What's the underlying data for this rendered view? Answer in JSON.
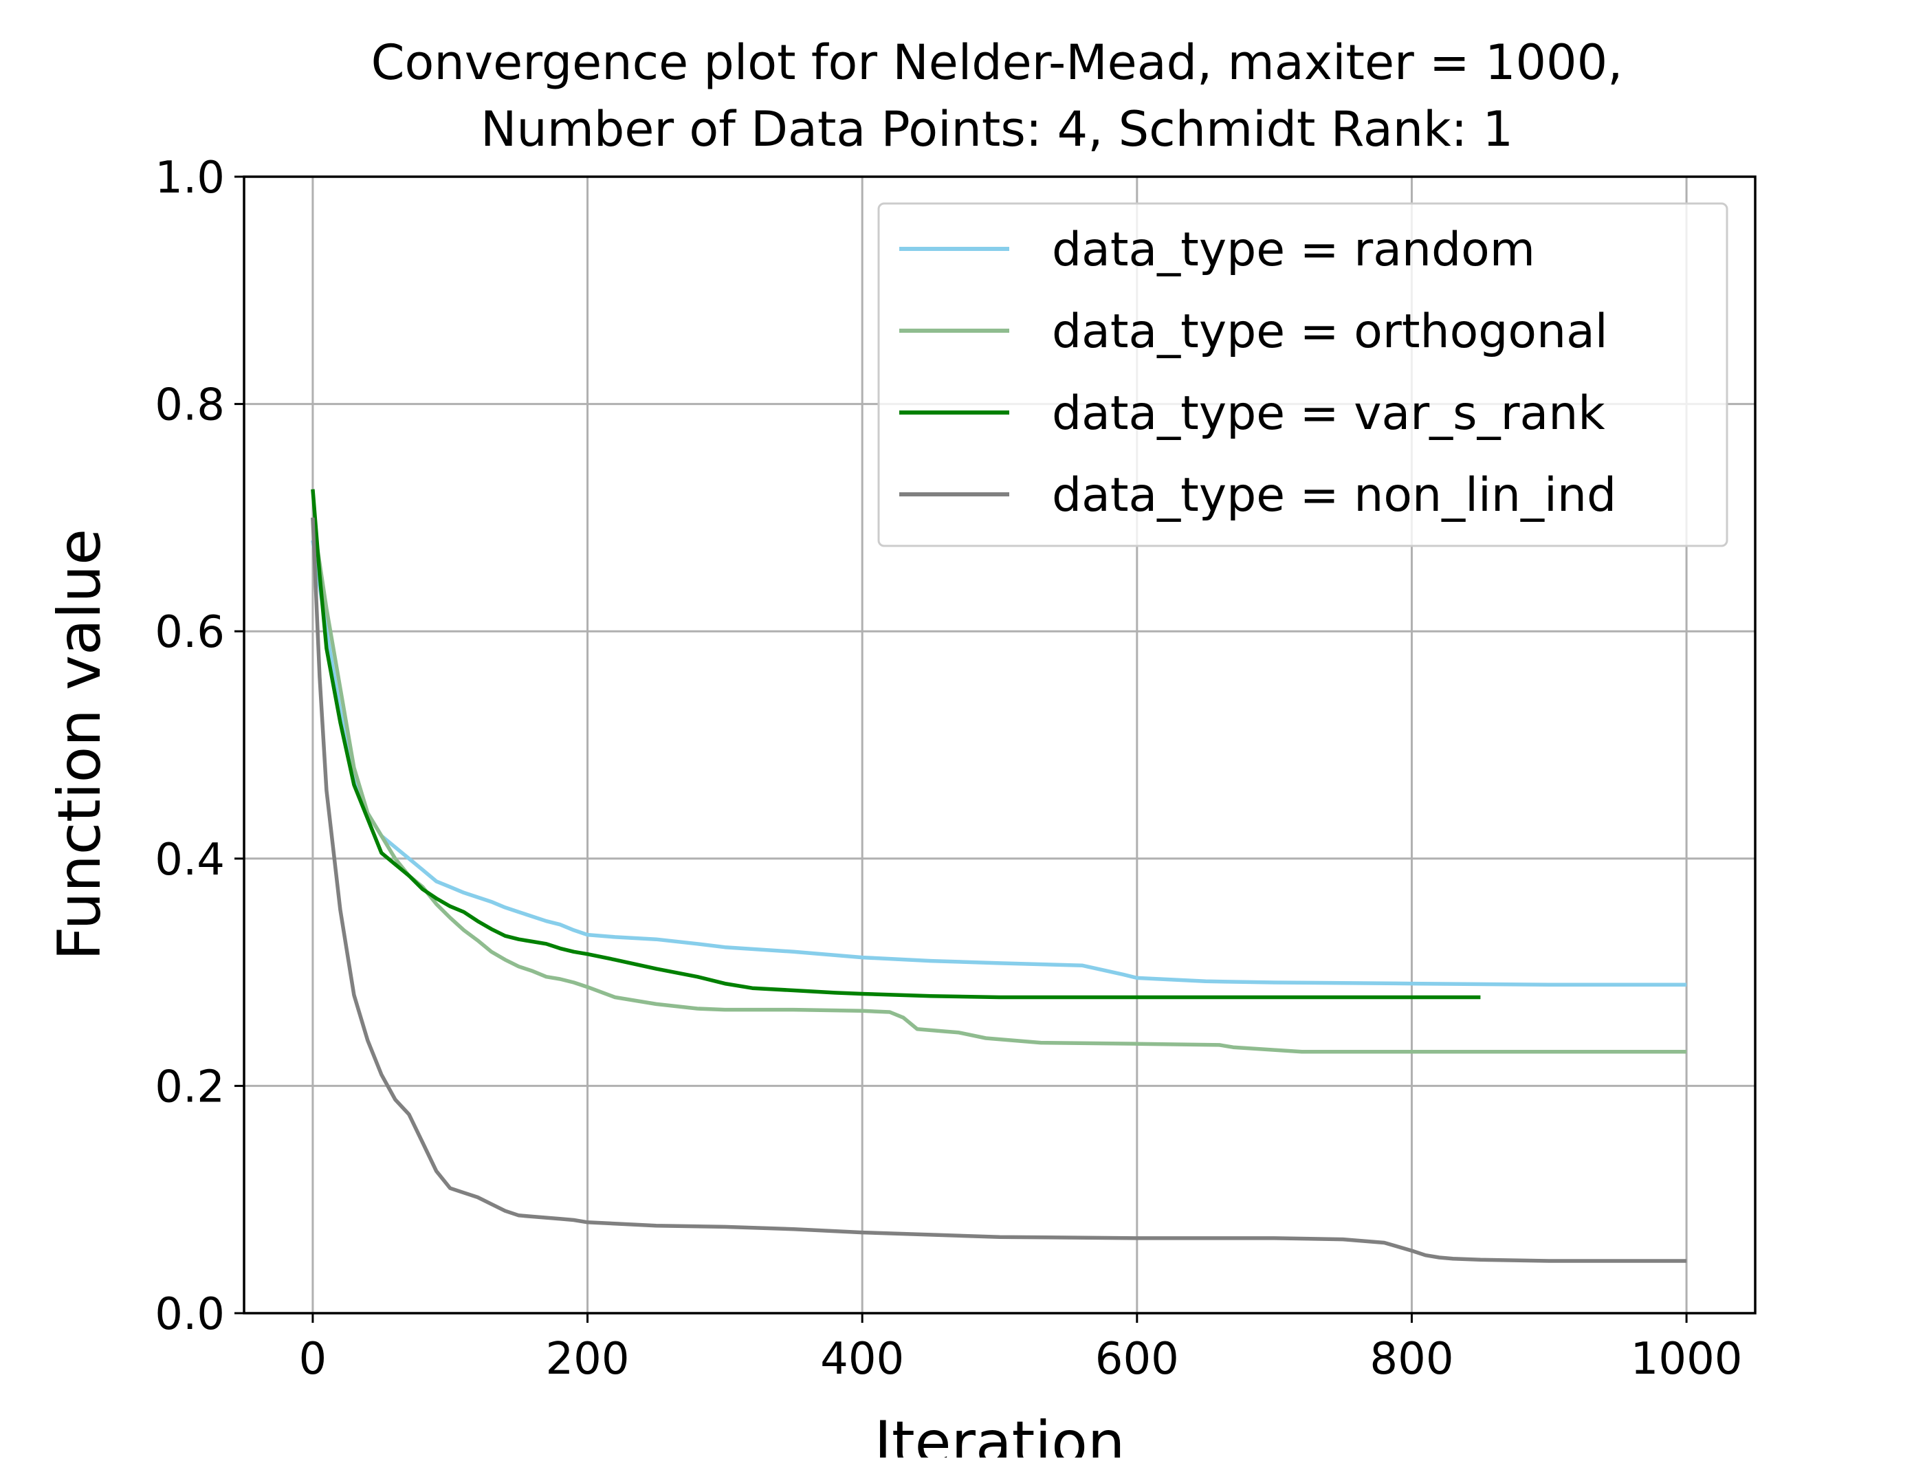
{
  "chart_data": {
    "type": "line",
    "title_lines": [
      "Convergence plot for Nelder-Mead, maxiter = 1000,",
      "Number of Data Points: 4, Schmidt Rank: 1"
    ],
    "xlabel": "Iteration",
    "ylabel": "Function value",
    "xlim": [
      -50,
      1050
    ],
    "ylim": [
      0.0,
      1.0
    ],
    "xticks": [
      0,
      200,
      400,
      600,
      800,
      1000
    ],
    "xtick_labels": [
      "0",
      "200",
      "400",
      "600",
      "800",
      "1000"
    ],
    "yticks": [
      0.0,
      0.2,
      0.4,
      0.6,
      0.8,
      1.0
    ],
    "ytick_labels": [
      "0.0",
      "0.2",
      "0.4",
      "0.6",
      "0.8",
      "1.0"
    ],
    "grid": true,
    "legend_position": "upper right",
    "series": [
      {
        "name": "data_type = random",
        "color": "#87CEEB",
        "x": [
          0,
          5,
          10,
          20,
          30,
          40,
          50,
          60,
          70,
          80,
          90,
          100,
          110,
          120,
          130,
          140,
          150,
          160,
          170,
          180,
          190,
          200,
          220,
          250,
          280,
          300,
          350,
          400,
          450,
          500,
          560,
          590,
          600,
          650,
          700,
          800,
          900,
          1000
        ],
        "y": [
          0.68,
          0.64,
          0.6,
          0.53,
          0.47,
          0.44,
          0.42,
          0.41,
          0.4,
          0.39,
          0.38,
          0.375,
          0.37,
          0.366,
          0.362,
          0.357,
          0.353,
          0.349,
          0.345,
          0.342,
          0.337,
          0.333,
          0.331,
          0.329,
          0.325,
          0.322,
          0.318,
          0.313,
          0.31,
          0.308,
          0.306,
          0.298,
          0.295,
          0.292,
          0.291,
          0.29,
          0.289,
          0.289
        ]
      },
      {
        "name": "data_type = orthogonal",
        "color": "#8FBC8F",
        "x": [
          0,
          5,
          10,
          20,
          30,
          40,
          50,
          60,
          70,
          80,
          90,
          100,
          110,
          120,
          130,
          140,
          150,
          160,
          170,
          180,
          190,
          200,
          220,
          250,
          280,
          300,
          350,
          400,
          420,
          430,
          440,
          460,
          470,
          490,
          530,
          600,
          660,
          670,
          720,
          800,
          900,
          1000
        ],
        "y": [
          0.7,
          0.66,
          0.62,
          0.55,
          0.48,
          0.44,
          0.42,
          0.4,
          0.385,
          0.375,
          0.36,
          0.348,
          0.337,
          0.328,
          0.318,
          0.311,
          0.305,
          0.301,
          0.296,
          0.294,
          0.291,
          0.287,
          0.278,
          0.272,
          0.268,
          0.267,
          0.267,
          0.266,
          0.265,
          0.26,
          0.25,
          0.248,
          0.247,
          0.242,
          0.238,
          0.237,
          0.236,
          0.234,
          0.23,
          0.23,
          0.23,
          0.23
        ]
      },
      {
        "name": "data_type = var_s_rank",
        "color": "#008000",
        "x": [
          0,
          5,
          10,
          20,
          30,
          40,
          50,
          60,
          70,
          80,
          90,
          100,
          110,
          120,
          130,
          140,
          150,
          160,
          170,
          180,
          190,
          200,
          220,
          250,
          280,
          300,
          320,
          350,
          380,
          400,
          450,
          500,
          550,
          600,
          700,
          800,
          850
        ],
        "y": [
          0.725,
          0.65,
          0.585,
          0.52,
          0.465,
          0.435,
          0.405,
          0.395,
          0.385,
          0.373,
          0.365,
          0.358,
          0.353,
          0.345,
          0.338,
          0.332,
          0.329,
          0.327,
          0.325,
          0.321,
          0.318,
          0.316,
          0.311,
          0.303,
          0.296,
          0.29,
          0.286,
          0.284,
          0.282,
          0.281,
          0.279,
          0.278,
          0.278,
          0.278,
          0.278,
          0.278,
          0.278
        ]
      },
      {
        "name": "data_type = non_lin_ind",
        "color": "#808080",
        "x": [
          0,
          5,
          10,
          20,
          30,
          40,
          50,
          60,
          70,
          80,
          90,
          100,
          110,
          120,
          130,
          140,
          150,
          160,
          170,
          180,
          190,
          200,
          250,
          300,
          350,
          400,
          500,
          600,
          700,
          750,
          780,
          800,
          810,
          820,
          830,
          850,
          900,
          1000
        ],
        "y": [
          0.7,
          0.56,
          0.46,
          0.355,
          0.28,
          0.24,
          0.21,
          0.188,
          0.175,
          0.15,
          0.125,
          0.11,
          0.106,
          0.102,
          0.096,
          0.09,
          0.086,
          0.085,
          0.084,
          0.083,
          0.082,
          0.08,
          0.077,
          0.076,
          0.074,
          0.071,
          0.067,
          0.066,
          0.066,
          0.065,
          0.062,
          0.055,
          0.051,
          0.049,
          0.048,
          0.047,
          0.046,
          0.046
        ]
      }
    ]
  }
}
